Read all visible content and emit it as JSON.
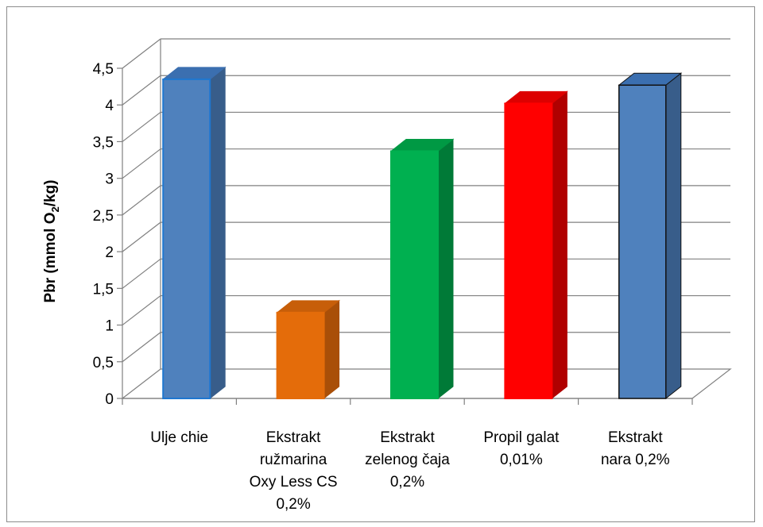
{
  "chart_data": {
    "type": "bar",
    "categories": [
      [
        "Ulje chie"
      ],
      [
        "Ekstrakt",
        "ružmarina",
        "Oxy Less CS",
        "0,2%"
      ],
      [
        "Ekstrakt",
        "zelenog čaja",
        "0,2%"
      ],
      [
        "Propil galat",
        "0,01%"
      ],
      [
        "Ekstrakt",
        "nara 0,2%"
      ]
    ],
    "values": [
      4.35,
      1.17,
      3.37,
      4.02,
      4.27
    ],
    "ylabel": {
      "main": "Pbr (mmol O",
      "sub": "2",
      "tail": "/kg)"
    },
    "ylim": [
      0,
      4.5
    ],
    "yticks": [
      {
        "value": 0,
        "label": "0"
      },
      {
        "value": 0.5,
        "label": "0,5"
      },
      {
        "value": 1,
        "label": "1"
      },
      {
        "value": 1.5,
        "label": "1,5"
      },
      {
        "value": 2,
        "label": "2"
      },
      {
        "value": 2.5,
        "label": "2,5"
      },
      {
        "value": 3,
        "label": "3"
      },
      {
        "value": 3.5,
        "label": "3,5"
      },
      {
        "value": 4,
        "label": "4"
      },
      {
        "value": 4.5,
        "label": "4,5"
      }
    ],
    "grid": true,
    "bar_colors": [
      {
        "front": "#4f81bd",
        "side": "#385d8a",
        "top": "#3b6fb0",
        "stroke": "#1f77d0"
      },
      {
        "front": "#e46c0a",
        "side": "#a94f08",
        "top": "#c75e09",
        "stroke": "#e46c0a"
      },
      {
        "front": "#00b050",
        "side": "#007a37",
        "top": "#009944",
        "stroke": "#00b050"
      },
      {
        "front": "#ff0000",
        "side": "#b00000",
        "top": "#dd0000",
        "stroke": "#ff0000"
      },
      {
        "front": "#4f81bd",
        "side": "#385d8a",
        "top": "#3b6fb0",
        "stroke": "#111111"
      }
    ]
  }
}
